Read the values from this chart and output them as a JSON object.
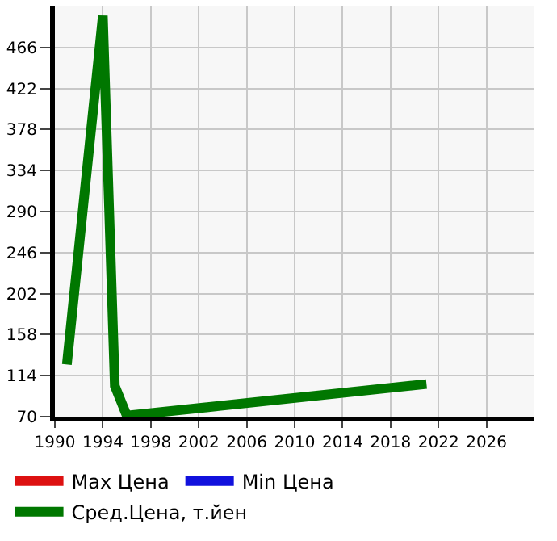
{
  "chart_data": {
    "type": "line",
    "x": [
      1991,
      1994,
      1995,
      1996,
      2021
    ],
    "series": [
      {
        "name": "Max Цена",
        "color": "#dd1111",
        "values": [
          null,
          null,
          null,
          null,
          null
        ]
      },
      {
        "name": "Min Цена",
        "color": "#1111dd",
        "values": [
          null,
          null,
          null,
          null,
          null
        ]
      },
      {
        "name": "Сред.Цена, т.йен",
        "color": "#007700",
        "values": [
          126,
          500,
          103,
          71,
          105
        ]
      }
    ],
    "xlim": [
      1990,
      2030
    ],
    "xticks": [
      1990,
      1994,
      1998,
      2002,
      2006,
      2010,
      2014,
      2018,
      2022,
      2026
    ],
    "ylim": [
      70,
      510
    ],
    "yticks": [
      70,
      114,
      158,
      202,
      246,
      290,
      334,
      378,
      422,
      466
    ],
    "grid": true,
    "legend": "bottom",
    "marker": "none",
    "line_style": "solid"
  }
}
